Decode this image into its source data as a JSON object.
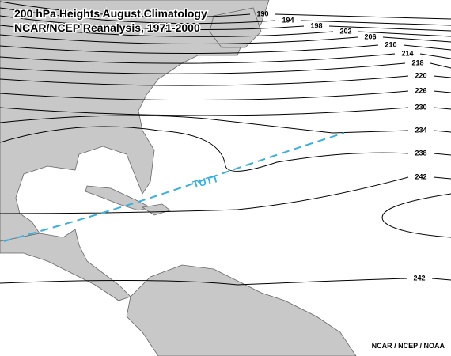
{
  "header": {
    "title": "200 hPa Heights August Climatology",
    "subtitle": "NCAR/NCEP Reanalysis, 1971-2000"
  },
  "contours": [
    {
      "label": "190"
    },
    {
      "label": "194"
    },
    {
      "label": "198"
    },
    {
      "label": "202"
    },
    {
      "label": "206"
    },
    {
      "label": "210"
    },
    {
      "label": "214"
    },
    {
      "label": "218"
    },
    {
      "label": "220"
    },
    {
      "label": "226"
    },
    {
      "label": "230"
    },
    {
      "label": "234"
    },
    {
      "label": "238"
    },
    {
      "label": "242"
    },
    {
      "label": "242"
    }
  ],
  "annotation": "TUTT",
  "credit": "NCAR / NCEP / NOAA"
}
